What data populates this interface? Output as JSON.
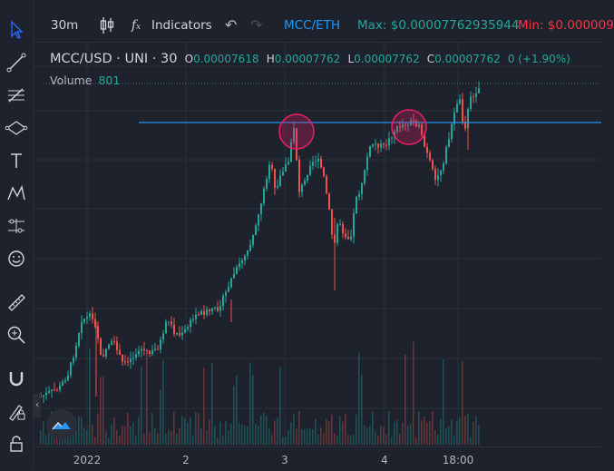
{
  "topbar": {
    "interval": "30m",
    "indicators_label": "Indicators",
    "pair_link": "MCC/ETH",
    "max_label": "Max: $0.00007762935944",
    "min_label": "Min: $0.000009"
  },
  "legend": {
    "symbol": "MCC/USD · UNI · 30",
    "open_key": "O",
    "open": "0.00007618",
    "high_key": "H",
    "high": "0.00007762",
    "low_key": "L",
    "low": "0.00007762",
    "close_key": "C",
    "close": "0.00007762",
    "change": "0 (+1.90%)"
  },
  "volume": {
    "label": "Volume",
    "value": "801"
  },
  "x_axis": {
    "ticks": [
      "2022",
      "2",
      "3",
      "4",
      "18:00"
    ]
  },
  "colors": {
    "up": "#26a69a",
    "down": "#ef5350",
    "accent": "#2962ff",
    "hline": "#2196f3",
    "circle": "#e91e63",
    "max": "#26a69a",
    "min": "#f23645"
  },
  "tools": [
    "cursor-icon",
    "trend-line-icon",
    "fib-retracement-icon",
    "brush-icon",
    "text-icon",
    "pattern-icon",
    "prediction-icon",
    "emoji-icon",
    "ruler-icon",
    "zoom-in-icon",
    "magnet-icon",
    "lock-drawings-icon",
    "lock-icon"
  ],
  "chart_data": {
    "type": "candlestick",
    "x": [
      "2022",
      "2",
      "3",
      "4",
      "18:00"
    ],
    "close_path": [
      {
        "x": "2022",
        "y_rel": 0.06
      },
      {
        "x": "2",
        "y_rel": 0.32
      },
      {
        "x": "3",
        "y_rel": 0.92
      },
      {
        "x": "4",
        "y_rel": 0.93
      },
      {
        "x": "18:00",
        "y_rel": 1.0
      }
    ],
    "last": {
      "open": 7.618e-05,
      "high": 7.762e-05,
      "low": 7.762e-05,
      "close": 7.762e-05,
      "change_pct": 1.9
    },
    "volume_last": 801,
    "annotations": [
      "horizontal resistance line",
      "two highlighted circles at resistance touches"
    ],
    "grid": true
  }
}
